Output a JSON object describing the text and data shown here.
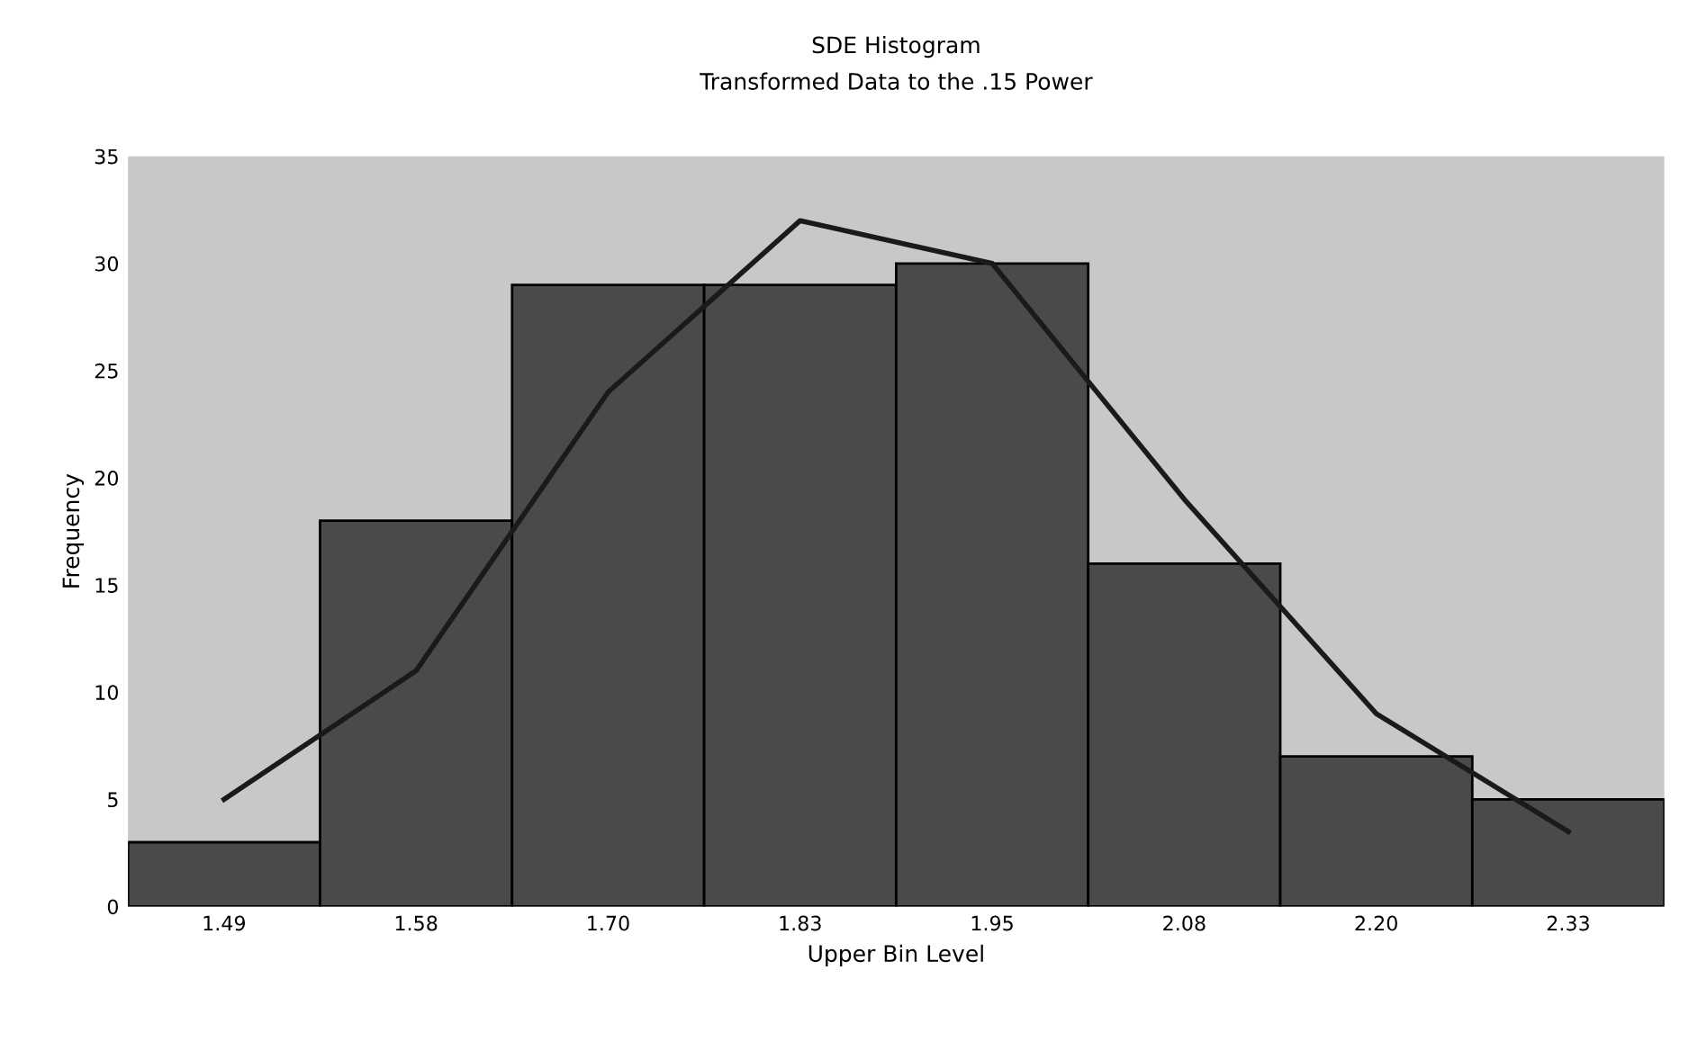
{
  "chart_data": {
    "type": "bar",
    "title": "SDE Histogram",
    "subtitle": "Transformed Data to the .15 Power",
    "xlabel": "Upper Bin Level",
    "ylabel": "Frequency",
    "categories": [
      "1.49",
      "1.58",
      "1.70",
      "1.83",
      "1.95",
      "2.08",
      "2.20",
      "2.33"
    ],
    "series": [
      {
        "color": "#4a4a4a",
        "values": [
          3,
          18,
          29,
          29,
          30,
          16,
          7,
          5
        ]
      },
      {
        "type": "line",
        "color": "#1a1a1a",
        "values": [
          5,
          11,
          24,
          32,
          30,
          19,
          9,
          3.5
        ]
      }
    ],
    "ylim": [
      0,
      35
    ],
    "yticks": [
      0,
      5,
      10,
      15,
      20,
      25,
      30,
      35
    ],
    "grid": false,
    "legend": false
  }
}
